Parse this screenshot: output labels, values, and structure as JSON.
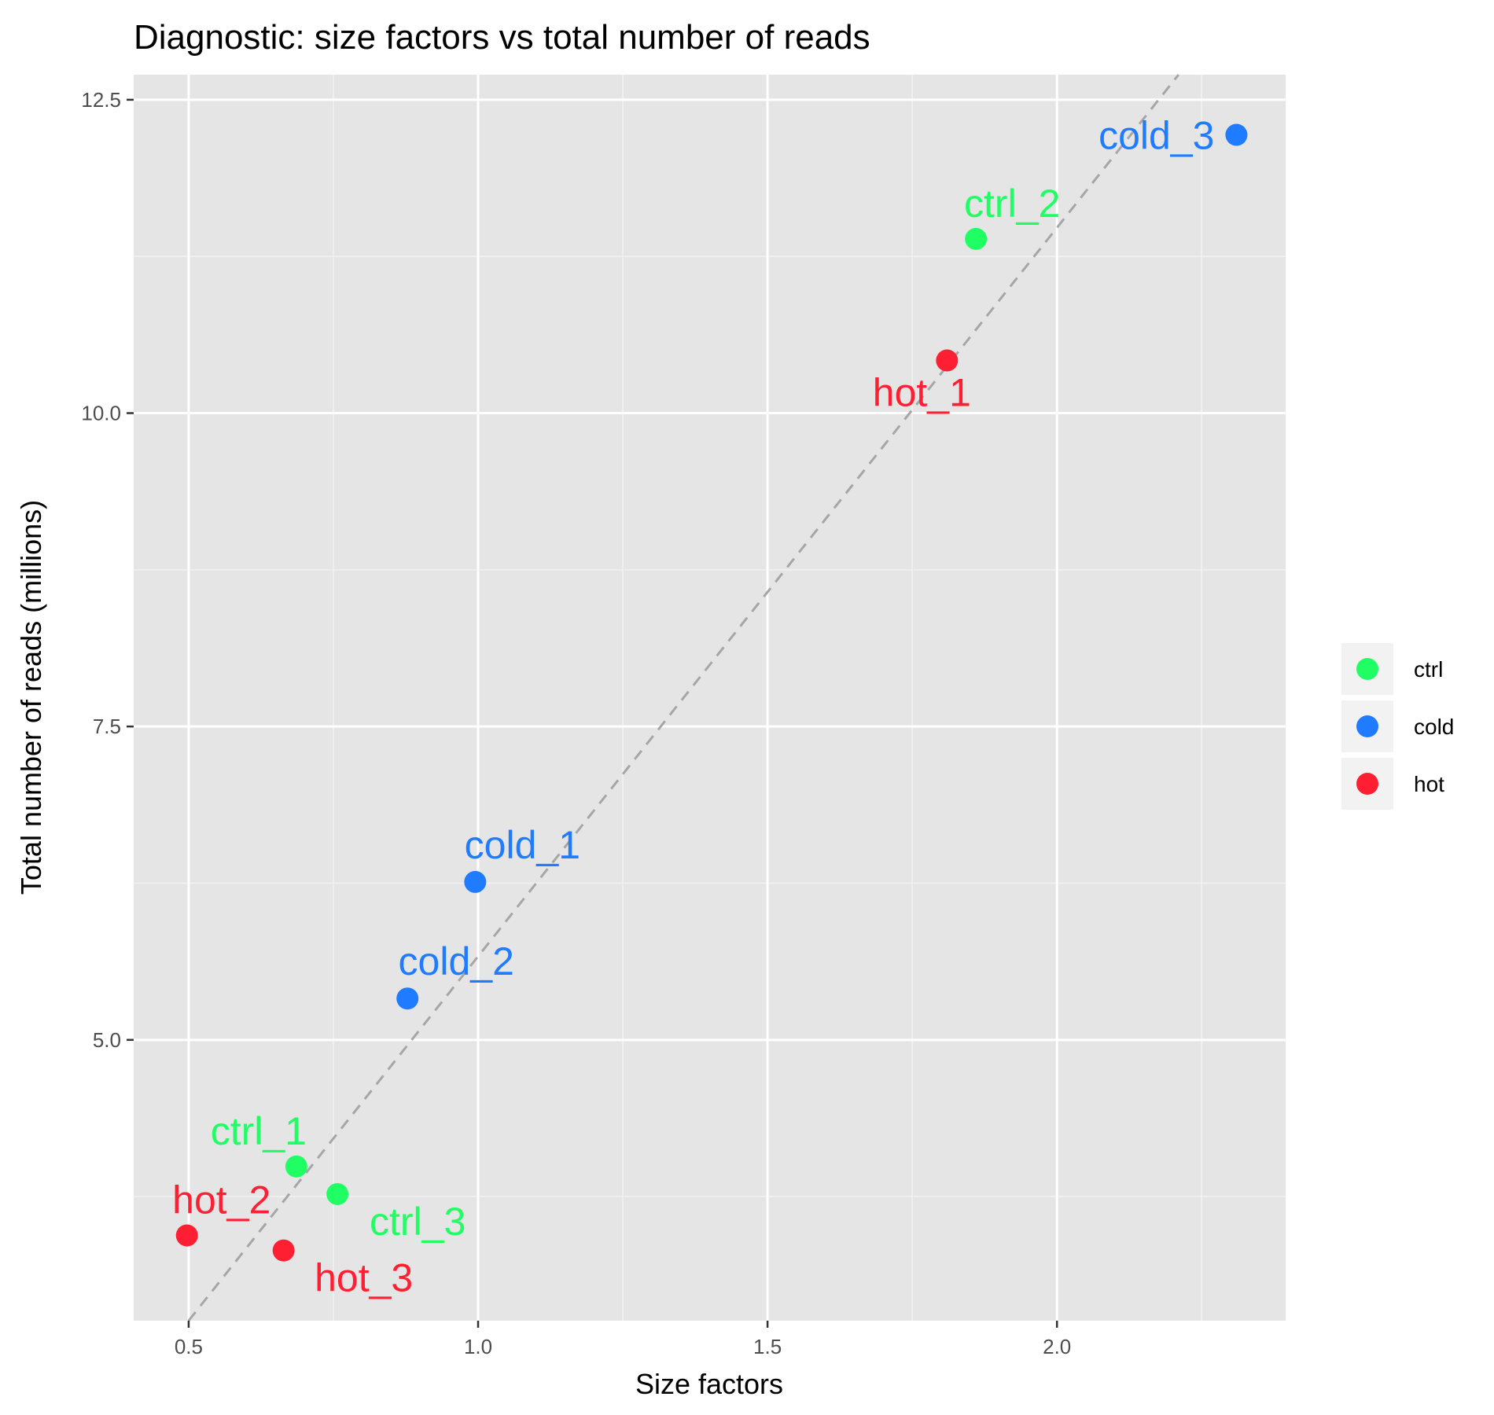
{
  "chart_data": {
    "type": "scatter",
    "title": "Diagnostic: size factors vs total number of reads",
    "xlabel": "Size factors",
    "ylabel": "Total number of reads (millions)",
    "xlim": [
      0.405,
      2.395
    ],
    "ylim": [
      2.76,
      12.7
    ],
    "x_ticks": [
      0.5,
      1.0,
      1.5,
      2.0
    ],
    "x_tick_labels": [
      "0.5",
      "1.0",
      "1.5",
      "2.0"
    ],
    "y_ticks": [
      5.0,
      7.5,
      10.0,
      12.5
    ],
    "y_tick_labels": [
      "5.0",
      "7.5",
      "10.0",
      "12.5"
    ],
    "grid": true,
    "legend_position": "right",
    "groups": [
      {
        "name": "ctrl",
        "color": "#1fff63"
      },
      {
        "name": "cold",
        "color": "#1f7bff"
      },
      {
        "name": "hot",
        "color": "#ff1f33"
      }
    ],
    "points": [
      {
        "label": "cold_3",
        "group": "cold",
        "x": 2.31,
        "y": 12.22
      },
      {
        "label": "ctrl_2",
        "group": "ctrl",
        "x": 1.86,
        "y": 11.39
      },
      {
        "label": "hot_1",
        "group": "hot",
        "x": 1.81,
        "y": 10.42
      },
      {
        "label": "cold_1",
        "group": "cold",
        "x": 0.995,
        "y": 6.26
      },
      {
        "label": "cold_2",
        "group": "cold",
        "x": 0.878,
        "y": 5.33
      },
      {
        "label": "ctrl_1",
        "group": "ctrl",
        "x": 0.686,
        "y": 3.99
      },
      {
        "label": "ctrl_3",
        "group": "ctrl",
        "x": 0.757,
        "y": 3.77
      },
      {
        "label": "hot_2",
        "group": "hot",
        "x": 0.497,
        "y": 3.44
      },
      {
        "label": "hot_3",
        "group": "hot",
        "x": 0.664,
        "y": 3.32
      }
    ],
    "reference_line": {
      "style": "dashed",
      "color": "#a6a6a6",
      "from": [
        0.5,
        2.76
      ],
      "to": [
        2.21,
        12.7
      ]
    }
  }
}
